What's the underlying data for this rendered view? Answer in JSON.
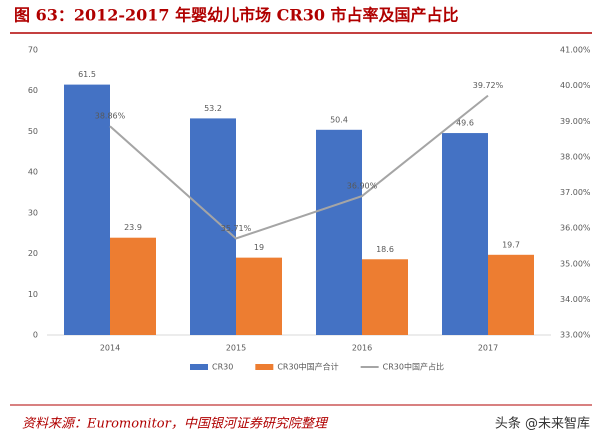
{
  "chart_data": {
    "type": "bar_line",
    "title": "图 63：2012-2017 年婴幼儿市场 CR30 市占率及国产占比",
    "source": "资料来源：Euromonitor，中国银河证券研究院整理",
    "watermark": "头条 @未来智库",
    "categories": [
      "2014",
      "2015",
      "2016",
      "2017"
    ],
    "series": [
      {
        "name": "CR30",
        "color": "#4472c4",
        "type": "bar",
        "values": [
          61.5,
          53.2,
          50.4,
          49.6
        ]
      },
      {
        "name": "CR30中国产合计",
        "color": "#ed7d31",
        "type": "bar",
        "values": [
          23.9,
          19,
          18.6,
          19.7
        ]
      },
      {
        "name": "CR30中国产占比",
        "color": "#a5a5a5",
        "type": "line",
        "axis": "y2",
        "values": [
          38.86,
          35.71,
          36.9,
          39.72
        ],
        "value_labels": [
          "38.86%",
          "35.71%",
          "36.90%",
          "39.72%"
        ]
      }
    ],
    "ylim": [
      0,
      70
    ],
    "yticks": [
      0,
      10,
      20,
      30,
      40,
      50,
      60,
      70
    ],
    "y2lim": [
      33,
      41
    ],
    "y2ticks": [
      {
        "value": 33,
        "label": "33.00%"
      },
      {
        "value": 34,
        "label": "34.00%"
      },
      {
        "value": 35,
        "label": "35.00%"
      },
      {
        "value": 36,
        "label": "36.00%"
      },
      {
        "value": 37,
        "label": "37.00%"
      },
      {
        "value": 38,
        "label": "38.00%"
      },
      {
        "value": 39,
        "label": "39.00%"
      },
      {
        "value": 40,
        "label": "40.00%"
      },
      {
        "value": 41,
        "label": "41.00%"
      }
    ],
    "grid": false,
    "legend": "bottom"
  }
}
